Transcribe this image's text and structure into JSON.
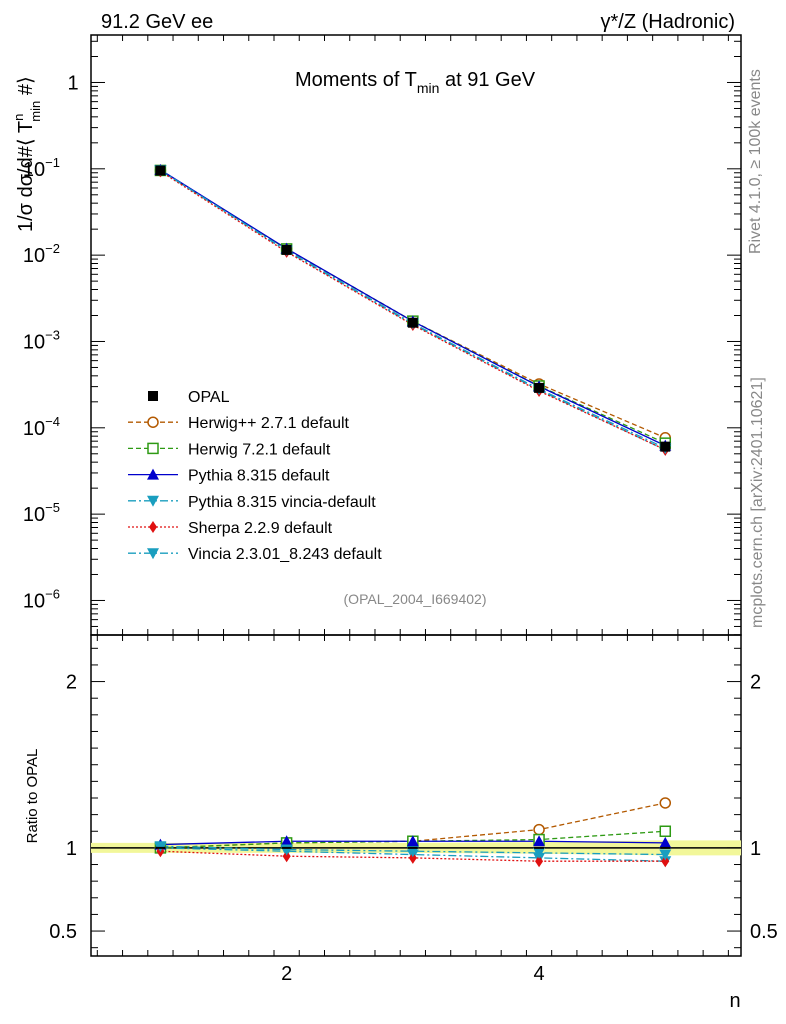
{
  "header": {
    "left": "91.2 GeV ee",
    "right_gamma": "γ",
    "right_rest": "*/Z (Hadronic)"
  },
  "side": {
    "rivet": "Rivet 4.1.0, ≥ 100k events",
    "mcplots": "mcplots.cern.ch [arXiv:2401.10621]"
  },
  "chart_data": {
    "type": "line",
    "title": {
      "pre": "Moments of T",
      "sub": "min",
      "post": " at 91 GeV"
    },
    "ylabel": {
      "a": "1/σ  dσ/d#⟨ T",
      "sup": "n",
      "sub": "min",
      "b": " #⟩"
    },
    "ratio_ylabel": "Ratio to OPAL",
    "xlabel": "n",
    "watermark": "(OPAL_2004_I669402)",
    "x": [
      1,
      2,
      3,
      4,
      5
    ],
    "xlim": [
      0.45,
      5.6
    ],
    "ylim_log10": [
      -6.4,
      0.55
    ],
    "ratio_ylim": [
      0.35,
      2.28
    ],
    "x_ticks": [
      {
        "v": 2,
        "label": "2"
      },
      {
        "v": 4,
        "label": "4"
      }
    ],
    "y_ticks": [
      {
        "exp": 0,
        "base": "1",
        "sup": ""
      },
      {
        "exp": -1,
        "base": "10",
        "sup": "−1"
      },
      {
        "exp": -2,
        "base": "10",
        "sup": "−2"
      },
      {
        "exp": -3,
        "base": "10",
        "sup": "−3"
      },
      {
        "exp": -4,
        "base": "10",
        "sup": "−4"
      },
      {
        "exp": -5,
        "base": "10",
        "sup": "−5"
      },
      {
        "exp": -6,
        "base": "10",
        "sup": "−6"
      }
    ],
    "ratio_ticks": [
      {
        "v": 0.5,
        "label": "0.5"
      },
      {
        "v": 1,
        "label": "1"
      },
      {
        "v": 2,
        "label": "2"
      }
    ],
    "data": {
      "name": "OPAL",
      "values": [
        0.0955,
        0.0115,
        0.00165,
        0.00029,
        6.05e-05
      ]
    },
    "band_ratio": [
      [
        0.97,
        1.03
      ],
      [
        0.97,
        1.03
      ],
      [
        0.97,
        1.03
      ],
      [
        0.965,
        1.035
      ],
      [
        0.955,
        1.045
      ]
    ],
    "series": [
      {
        "name": "Herwig++ 2.7.1 default",
        "color": "#b35900",
        "dash": "5,3",
        "marker": "circle-open",
        "values": [
          0.0953,
          0.0118,
          0.00171,
          0.000322,
          7.66e-05
        ],
        "ratio": [
          1.0,
          1.03,
          1.04,
          1.11,
          1.27
        ]
      },
      {
        "name": "Herwig 7.2.1 default",
        "color": "#2e9a14",
        "dash": "5,3",
        "marker": "square-open",
        "values": [
          0.0958,
          0.0118,
          0.00172,
          0.000305,
          6.64e-05
        ],
        "ratio": [
          1.0,
          1.03,
          1.04,
          1.05,
          1.1
        ]
      },
      {
        "name": "Pythia 8.315 default",
        "color": "#0000cc",
        "dash": "",
        "marker": "triangle-up",
        "values": [
          0.0973,
          0.0119,
          0.00171,
          0.000302,
          6.22e-05
        ],
        "ratio": [
          1.02,
          1.04,
          1.04,
          1.04,
          1.03
        ]
      },
      {
        "name": "Pythia 8.315 vincia-default",
        "color": "#1a9ebf",
        "dash": "8,3,2,3",
        "marker": "triangle-down",
        "values": [
          0.0958,
          0.0112,
          0.00158,
          0.000273,
          5.55e-05
        ],
        "ratio": [
          1.0,
          0.98,
          0.96,
          0.94,
          0.92
        ]
      },
      {
        "name": "Sherpa 2.2.9 default",
        "color": "#e01010",
        "dash": "2,2",
        "marker": "diamond",
        "values": [
          0.0935,
          0.0109,
          0.00155,
          0.000267,
          5.56e-05
        ],
        "ratio": [
          0.98,
          0.95,
          0.94,
          0.92,
          0.92
        ]
      },
      {
        "name": "Vincia 2.3.01_8.243 default",
        "color": "#1a9ebf",
        "dash": "8,3,2,3",
        "marker": "triangle-down",
        "values": [
          0.0962,
          0.0114,
          0.00162,
          0.000281,
          5.82e-05
        ],
        "ratio": [
          1.01,
          0.99,
          0.98,
          0.97,
          0.96
        ]
      }
    ]
  }
}
